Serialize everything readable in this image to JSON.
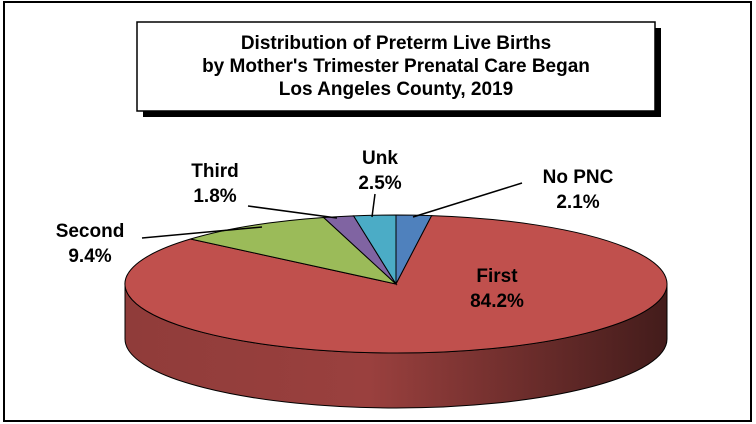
{
  "chart_data": {
    "type": "pie",
    "three_d": true,
    "title": [
      "Distribution of Preterm Live Births",
      "by Mother's Trimester Prenatal Care Began",
      "Los Angeles County, 2019"
    ],
    "categories": [
      "No PNC",
      "First",
      "Second",
      "Third",
      "Unk"
    ],
    "values": [
      2.1,
      84.2,
      9.4,
      1.8,
      2.5
    ],
    "value_labels": [
      "2.1%",
      "84.2%",
      "9.4%",
      "1.8%",
      "2.5%"
    ],
    "colors": [
      "#4f81bd",
      "#c0504d",
      "#9bbb59",
      "#8064a2",
      "#4bacc6"
    ]
  }
}
